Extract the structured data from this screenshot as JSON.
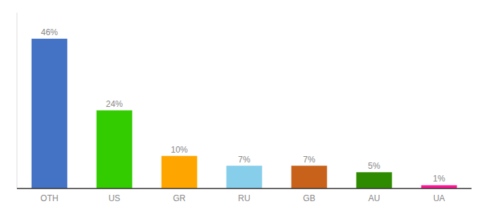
{
  "chart_data": {
    "type": "bar",
    "categories": [
      "OTH",
      "US",
      "GR",
      "RU",
      "GB",
      "AU",
      "UA"
    ],
    "values": [
      46,
      24,
      10,
      7,
      7,
      5,
      1
    ],
    "value_labels": [
      "46%",
      "24%",
      "10%",
      "7%",
      "7%",
      "5%",
      "1%"
    ],
    "colors": [
      "#4472C4",
      "#33CC00",
      "#FFA500",
      "#87CEEB",
      "#C8621B",
      "#2E8B00",
      "#FF1493"
    ],
    "ylim": [
      0,
      54
    ],
    "data_labels": true,
    "tick_labels": "x",
    "grid": false
  }
}
